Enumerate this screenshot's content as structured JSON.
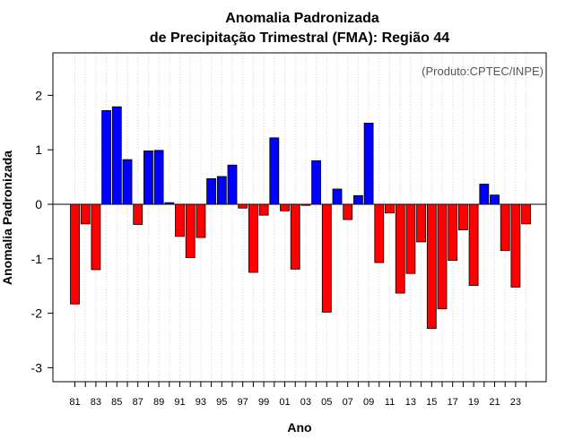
{
  "chart_data": {
    "type": "bar",
    "title": "Anomalia Padronizada",
    "subtitle": "de Precipitação Trimestral (FMA): Região 44",
    "xlabel": "Ano",
    "ylabel": "Anomalia Padronizada",
    "credit": "(Produto:CPTEC/INPE)",
    "ylim": [
      -3.3,
      2.8
    ],
    "yticks": [
      -3,
      -2,
      -1,
      0,
      1,
      2
    ],
    "grid": "vertical dotted",
    "colors": {
      "positive": "#0000ff",
      "negative": "#ff0000"
    },
    "categories": [
      "81",
      "82",
      "83",
      "84",
      "85",
      "86",
      "87",
      "88",
      "89",
      "90",
      "91",
      "92",
      "93",
      "94",
      "95",
      "96",
      "97",
      "98",
      "99",
      "00",
      "01",
      "02",
      "03",
      "04",
      "05",
      "06",
      "07",
      "08",
      "09",
      "10",
      "11",
      "12",
      "13",
      "14",
      "15",
      "16",
      "17",
      "18",
      "19",
      "20",
      "21",
      "22",
      "23",
      "24"
    ],
    "xtick_labels": [
      "81",
      "83",
      "85",
      "87",
      "89",
      "91",
      "93",
      "95",
      "97",
      "99",
      "01",
      "03",
      "05",
      "07",
      "09",
      "11",
      "13",
      "15",
      "17",
      "19",
      "21",
      "23"
    ],
    "values": [
      -1.83,
      -0.36,
      -1.2,
      1.72,
      1.79,
      0.82,
      -0.37,
      0.98,
      0.99,
      0.03,
      -0.59,
      -0.98,
      -0.61,
      0.47,
      0.51,
      0.72,
      -0.07,
      -1.25,
      -0.2,
      1.22,
      -0.12,
      -1.19,
      -0.02,
      0.8,
      -1.98,
      0.28,
      -0.28,
      0.16,
      1.49,
      -1.07,
      -0.16,
      -1.63,
      -1.27,
      -0.69,
      -2.28,
      -1.92,
      -1.03,
      -0.47,
      -1.49,
      0.37,
      0.17,
      -0.85,
      -1.52,
      -0.36
    ]
  }
}
